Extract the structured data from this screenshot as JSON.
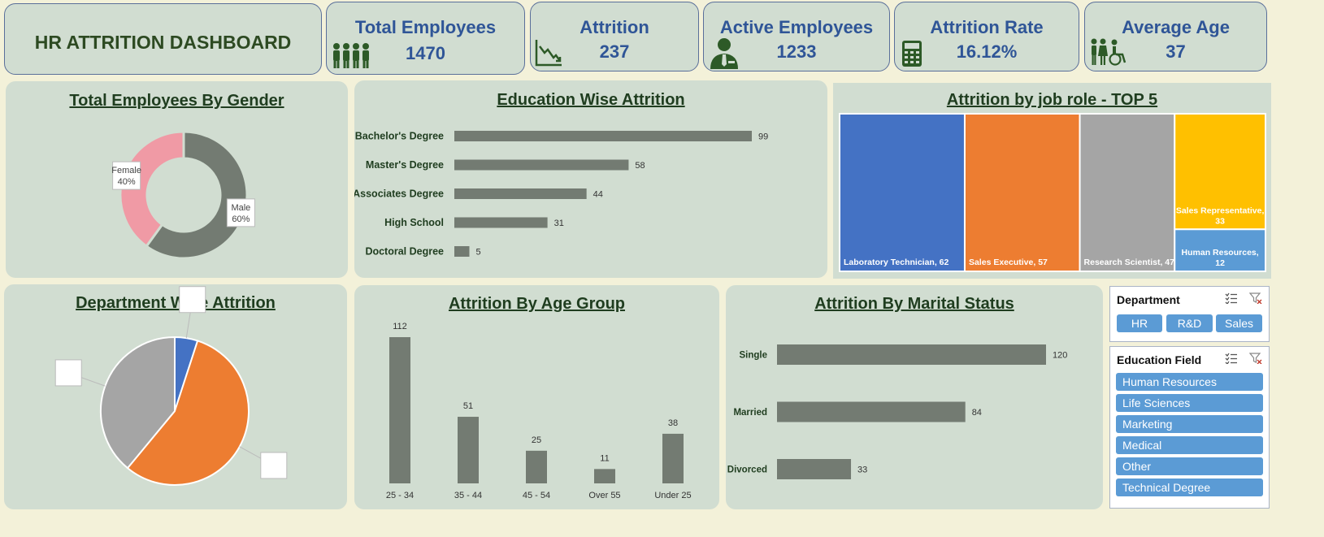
{
  "header": {
    "title": "HR ATTRITION DASHBOARD"
  },
  "kpis": {
    "total_employees": {
      "label": "Total Employees",
      "value": "1470",
      "icon": "people-group-icon"
    },
    "attrition": {
      "label": "Attrition",
      "value": "237",
      "icon": "declining-chart-icon"
    },
    "active_employees": {
      "label": "Active Employees",
      "value": "1233",
      "icon": "employee-icon"
    },
    "attrition_rate": {
      "label": "Attrition Rate",
      "value": "16.12%",
      "icon": "calculator-icon"
    },
    "average_age": {
      "label": "Average Age",
      "value": "37",
      "icon": "family-accessibility-icon"
    }
  },
  "chart_data": [
    {
      "id": "gender",
      "type": "pie",
      "title": "Total Employees By Gender",
      "labels": [
        "Male",
        "Female"
      ],
      "values": [
        60,
        40
      ],
      "display": [
        "60%",
        "40%"
      ],
      "colors": [
        "#737b72",
        "#f09aa5"
      ],
      "donut": true
    },
    {
      "id": "education",
      "type": "bar",
      "orientation": "horizontal",
      "title": "Education Wise Attrition",
      "categories": [
        "Bachelor's Degree",
        "Master's Degree",
        "Associates Degree",
        "High School",
        "Doctoral Degree"
      ],
      "values": [
        99,
        58,
        44,
        31,
        5
      ],
      "color": "#737b72"
    },
    {
      "id": "jobrole",
      "type": "treemap",
      "title": "Attrition by job role - TOP 5",
      "items": [
        {
          "label": "Laboratory Technician, 62",
          "value": 62,
          "color": "#4472c4"
        },
        {
          "label": "Sales Executive, 57",
          "value": 57,
          "color": "#ed7d31"
        },
        {
          "label": "Research Scientist, 47",
          "value": 47,
          "color": "#a5a5a5"
        },
        {
          "label": "Sales Representative, 33",
          "value": 33,
          "color": "#ffc000"
        },
        {
          "label": "Human Resources, 12",
          "value": 12,
          "color": "#5b9bd5"
        }
      ]
    },
    {
      "id": "department",
      "type": "pie",
      "title": "Department Wise Attrition",
      "values": [
        5,
        56,
        39
      ],
      "colors": [
        "#4472c4",
        "#ed7d31",
        "#a5a5a5"
      ]
    },
    {
      "id": "agegroup",
      "type": "bar",
      "orientation": "vertical",
      "title": "Attrition By Age Group",
      "categories": [
        "25 - 34",
        "35 - 44",
        "45 - 54",
        "Over 55",
        "Under 25"
      ],
      "values": [
        112,
        51,
        25,
        11,
        38
      ],
      "color": "#737b72"
    },
    {
      "id": "marital",
      "type": "bar",
      "orientation": "horizontal",
      "title": "Attrition By Marital Status",
      "categories": [
        "Single",
        "Married",
        "Divorced"
      ],
      "values": [
        120,
        84,
        33
      ],
      "color": "#737b72"
    }
  ],
  "slicers": {
    "department": {
      "title": "Department",
      "options": [
        "HR",
        "R&D",
        "Sales"
      ]
    },
    "education_field": {
      "title": "Education Field",
      "options": [
        "Human Resources",
        "Life Sciences",
        "Marketing",
        "Medical",
        "Other",
        "Technical Degree"
      ]
    }
  }
}
